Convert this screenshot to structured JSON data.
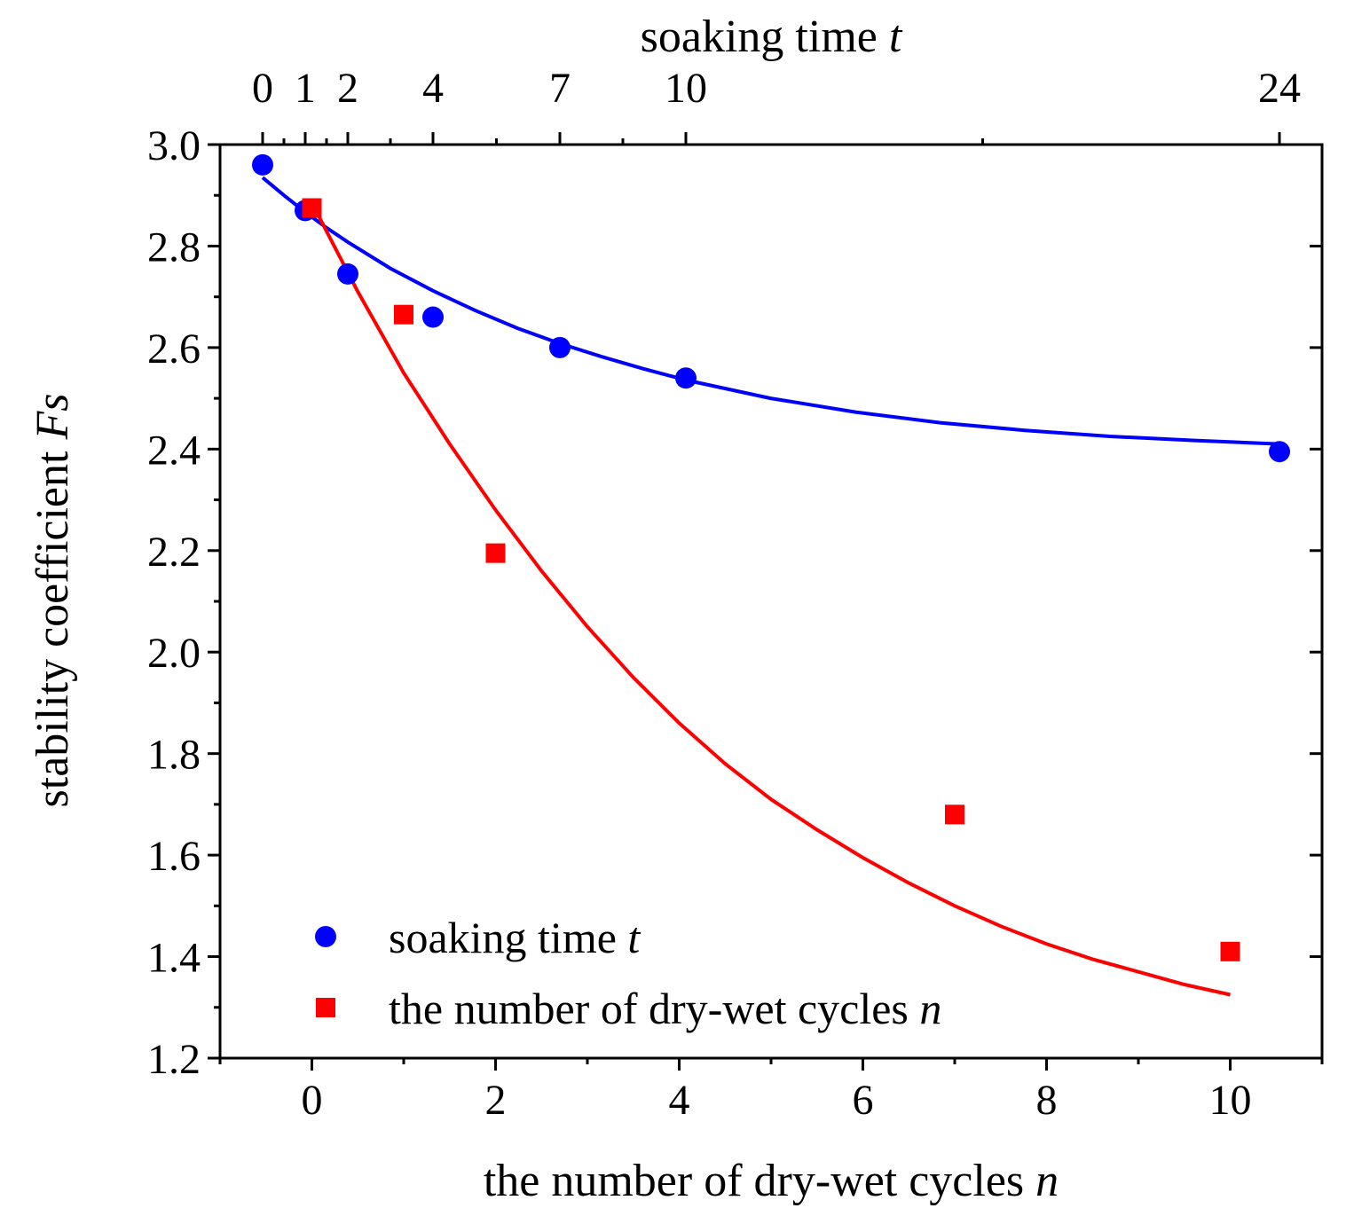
{
  "chart_data": {
    "type": "scatter",
    "ylabel": "stability coefficient Fs",
    "ylabel_parts": [
      "stability coefficient ",
      "Fs"
    ],
    "xlabel_bottom": "the number of dry-wet cycles n",
    "xlabel_bottom_parts": [
      "the number of dry-wet cycles ",
      "n"
    ],
    "xlabel_top": "soaking time t",
    "xlabel_top_parts": [
      "soaking time ",
      "t"
    ],
    "ylim": [
      1.2,
      3.0
    ],
    "xlim_bottom": [
      -1,
      11
    ],
    "y_ticks": [
      "1.2",
      "1.4",
      "1.6",
      "1.8",
      "2.0",
      "2.2",
      "2.4",
      "2.6",
      "2.8",
      "3.0"
    ],
    "x_ticks_bottom": [
      "0",
      "2",
      "4",
      "6",
      "8",
      "10"
    ],
    "x_ticks_top": [
      "0",
      "1",
      "2",
      "4",
      "7",
      "10",
      "24"
    ],
    "grid": false,
    "legend_position": "bottom-left",
    "series": [
      {
        "name": "soaking time t",
        "name_parts": [
          "soaking time ",
          "t"
        ],
        "color": "#0000ff",
        "marker": "circle",
        "axis": "top",
        "x": [
          0,
          1,
          2,
          4,
          7,
          10,
          24
        ],
        "y": [
          2.96,
          2.87,
          2.745,
          2.66,
          2.6,
          2.54,
          2.395
        ],
        "fit": {
          "x": [
            0,
            0.5,
            1,
            1.5,
            2,
            3,
            4,
            5,
            6,
            7,
            8,
            9,
            10,
            12,
            14,
            16,
            18,
            20,
            22,
            24
          ],
          "y": [
            2.935,
            2.9,
            2.867,
            2.836,
            2.808,
            2.756,
            2.712,
            2.673,
            2.638,
            2.608,
            2.582,
            2.558,
            2.536,
            2.5,
            2.473,
            2.452,
            2.437,
            2.425,
            2.417,
            2.41
          ]
        }
      },
      {
        "name": "the number of dry-wet cycles n",
        "name_parts": [
          "the number of dry-wet cycles ",
          "n"
        ],
        "color": "#ff0000",
        "marker": "square",
        "axis": "bottom",
        "x": [
          0,
          1,
          2,
          7,
          10
        ],
        "y": [
          2.875,
          2.665,
          2.195,
          1.68,
          1.41
        ],
        "fit": {
          "x": [
            0,
            0.5,
            1,
            1.5,
            2,
            2.5,
            3,
            3.5,
            4,
            4.5,
            5,
            5.5,
            6,
            6.5,
            7,
            7.5,
            8,
            8.5,
            9,
            9.5,
            10
          ],
          "y": [
            2.885,
            2.71,
            2.55,
            2.41,
            2.28,
            2.16,
            2.05,
            1.95,
            1.86,
            1.78,
            1.71,
            1.65,
            1.595,
            1.545,
            1.5,
            1.46,
            1.425,
            1.395,
            1.37,
            1.345,
            1.325
          ]
        }
      }
    ]
  }
}
